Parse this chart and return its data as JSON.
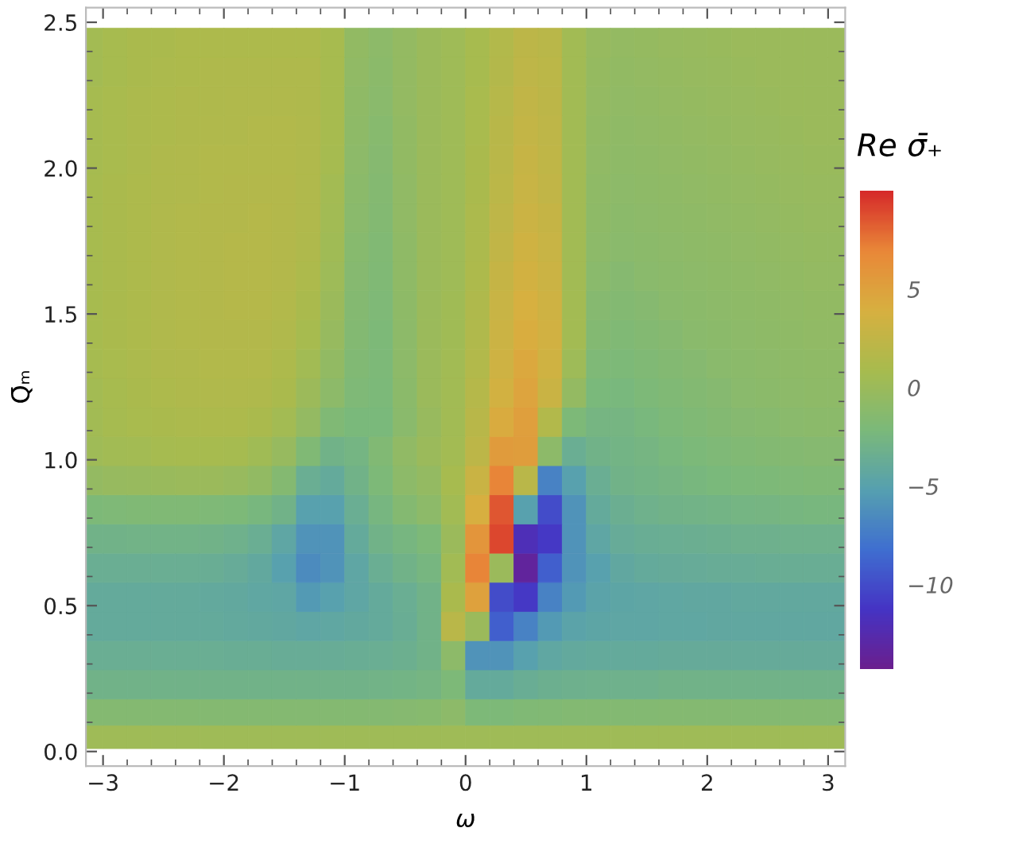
{
  "chart_data": {
    "type": "heatmap",
    "xlabel": "ω",
    "ylabel": "Q̄ₘ",
    "clabel": "Re σ̄₊",
    "xlim": [
      -3.1416,
      3.1416
    ],
    "ylim": [
      -0.05,
      2.55
    ],
    "xticks": [
      {
        "value": -3,
        "label": "−3"
      },
      {
        "value": -2,
        "label": "−2"
      },
      {
        "value": -1,
        "label": "−1"
      },
      0,
      1,
      2,
      3
    ],
    "yticks": [
      {
        "value": 0,
        "label": "0.0"
      },
      0.5,
      {
        "value": 1,
        "label": "1.0"
      },
      1.5,
      {
        "value": 2,
        "label": "2.0"
      },
      2.5
    ],
    "clim": [
      -14.3,
      10
    ],
    "cticks": [
      {
        "value": -10,
        "label": "−10"
      },
      {
        "value": -5,
        "label": "−5"
      },
      0,
      5
    ],
    "colors": [
      "#6b1f8e",
      "#4534c4",
      "#3f6fd0",
      "#56a0b0",
      "#7bb97a",
      "#a8bb4e",
      "#d7b040",
      "#e98838",
      "#d62a2a"
    ],
    "x": [
      -3.1,
      -2.9,
      -2.7,
      -2.5,
      -2.3,
      -2.1,
      -1.9,
      -1.7,
      -1.5,
      -1.3,
      -1.1,
      -0.9,
      -0.7,
      -0.5,
      -0.3,
      -0.1,
      0.1,
      0.3,
      0.5,
      0.7,
      0.9,
      1.1,
      1.3,
      1.5,
      1.7,
      1.9,
      2.1,
      2.3,
      2.5,
      2.7,
      2.9,
      3.1
    ],
    "y": [
      2.43,
      2.33,
      2.23,
      2.13,
      2.03,
      1.93,
      1.83,
      1.73,
      1.63,
      1.53,
      1.43,
      1.33,
      1.23,
      1.13,
      1.03,
      0.93,
      0.83,
      0.73,
      0.63,
      0.53,
      0.43,
      0.33,
      0.23,
      0.13,
      0.05
    ],
    "cells": [
      [
        0.6,
        0.8,
        1,
        1,
        1.2,
        1.2,
        1.2,
        1.2,
        1.2,
        1.2,
        0.8,
        -0.6,
        -1,
        -0.5,
        0,
        0.3,
        0.8,
        1.5,
        2.2,
        2,
        0.5,
        -0.3,
        -0.5,
        -0.4,
        -0.3,
        -0.2,
        -0.1,
        0,
        0,
        0,
        0,
        0
      ],
      [
        0.6,
        0.8,
        1,
        1.1,
        1.2,
        1.3,
        1.3,
        1.3,
        1.3,
        1.3,
        0.8,
        -0.7,
        -1.1,
        -0.5,
        0,
        0.3,
        0.8,
        1.6,
        2.3,
        2.1,
        0.5,
        -0.4,
        -0.6,
        -0.5,
        -0.4,
        -0.3,
        -0.2,
        -0.1,
        0,
        0,
        0,
        0
      ],
      [
        0.7,
        0.9,
        1.1,
        1.2,
        1.3,
        1.3,
        1.4,
        1.4,
        1.4,
        1.3,
        0.8,
        -0.8,
        -1.2,
        -0.5,
        0,
        0.3,
        0.9,
        1.8,
        2.5,
        2.2,
        0.5,
        -0.5,
        -0.7,
        -0.6,
        -0.5,
        -0.4,
        -0.3,
        -0.2,
        -0.1,
        0,
        0,
        0
      ],
      [
        0.7,
        0.9,
        1.1,
        1.2,
        1.3,
        1.4,
        1.4,
        1.5,
        1.5,
        1.4,
        0.8,
        -0.9,
        -1.3,
        -0.6,
        0,
        0.3,
        0.9,
        1.9,
        2.6,
        2.3,
        0.5,
        -0.6,
        -0.8,
        -0.7,
        -0.6,
        -0.5,
        -0.4,
        -0.3,
        -0.2,
        -0.1,
        0,
        0
      ],
      [
        0.7,
        0.9,
        1.1,
        1.3,
        1.4,
        1.5,
        1.5,
        1.5,
        1.5,
        1.4,
        0.7,
        -1,
        -1.4,
        -0.6,
        0,
        0.3,
        1,
        2,
        2.8,
        2.4,
        0.5,
        -0.7,
        -0.9,
        -0.8,
        -0.7,
        -0.6,
        -0.5,
        -0.4,
        -0.3,
        -0.2,
        -0.1,
        -0.1
      ],
      [
        0.8,
        1,
        1.2,
        1.3,
        1.4,
        1.5,
        1.6,
        1.6,
        1.6,
        1.4,
        0.6,
        -1.1,
        -1.5,
        -0.7,
        0,
        0.3,
        1,
        2.1,
        2.9,
        2.5,
        0.5,
        -0.8,
        -1,
        -0.9,
        -0.8,
        -0.7,
        -0.6,
        -0.5,
        -0.4,
        -0.3,
        -0.2,
        -0.2
      ],
      [
        0.8,
        1,
        1.2,
        1.4,
        1.5,
        1.6,
        1.6,
        1.7,
        1.6,
        1.4,
        0.5,
        -1.2,
        -1.6,
        -0.7,
        0,
        0.3,
        1.1,
        2.3,
        3.1,
        2.7,
        0.5,
        -0.9,
        -1.1,
        -1,
        -0.9,
        -0.8,
        -0.7,
        -0.6,
        -0.5,
        -0.4,
        -0.3,
        -0.3
      ],
      [
        0.8,
        1,
        1.2,
        1.4,
        1.5,
        1.6,
        1.7,
        1.7,
        1.6,
        1.3,
        0.4,
        -1.3,
        -1.7,
        -0.8,
        0,
        0.3,
        1.1,
        2.5,
        3.4,
        2.9,
        0.5,
        -1,
        -1.2,
        -1.1,
        -1,
        -0.9,
        -0.8,
        -0.7,
        -0.6,
        -0.5,
        -0.4,
        -0.4
      ],
      [
        0.8,
        1,
        1.2,
        1.4,
        1.5,
        1.6,
        1.7,
        1.7,
        1.6,
        1.2,
        0.2,
        -1.4,
        -1.8,
        -0.8,
        0,
        0.3,
        1.2,
        2.7,
        3.6,
        3.1,
        0.5,
        -1.2,
        -1.4,
        -1.2,
        -1.1,
        -1,
        -0.9,
        -0.8,
        -0.7,
        -0.6,
        -0.5,
        -0.5
      ],
      [
        0.8,
        1,
        1.2,
        1.4,
        1.5,
        1.6,
        1.7,
        1.7,
        1.5,
        1,
        0,
        -1.5,
        -1.9,
        -0.9,
        0,
        0.4,
        1.3,
        2.9,
        3.9,
        3.3,
        0.6,
        -1.4,
        -1.6,
        -1.4,
        -1.2,
        -1.1,
        -1,
        -0.9,
        -0.8,
        -0.7,
        -0.6,
        -0.6
      ],
      [
        0.8,
        1,
        1.2,
        1.4,
        1.5,
        1.6,
        1.6,
        1.6,
        1.4,
        0.8,
        -0.3,
        -1.6,
        -2,
        -1,
        0,
        0.4,
        1.4,
        3.1,
        4.2,
        3.5,
        0.6,
        -1.6,
        -1.8,
        -1.6,
        -1.4,
        -1.2,
        -1.1,
        -1,
        -0.9,
        -0.8,
        -0.7,
        -0.7
      ],
      [
        0.7,
        0.9,
        1.1,
        1.3,
        1.4,
        1.5,
        1.5,
        1.5,
        1.2,
        0.5,
        -0.6,
        -1.7,
        -2,
        -1,
        0,
        0.5,
        1.5,
        3.3,
        4.5,
        3.4,
        0.2,
        -1.9,
        -2,
        -1.8,
        -1.6,
        -1.4,
        -1.2,
        -1.1,
        -1,
        -0.9,
        -0.8,
        -0.8
      ],
      [
        0.6,
        0.8,
        1,
        1.2,
        1.3,
        1.4,
        1.4,
        1.3,
        1,
        0.1,
        -1,
        -1.9,
        -2.1,
        -1.1,
        0,
        0.5,
        1.7,
        3.6,
        4.8,
        3,
        -0.5,
        -2.2,
        -2.3,
        -2,
        -1.8,
        -1.6,
        -1.4,
        -1.2,
        -1.1,
        -1,
        -0.9,
        -0.9
      ],
      [
        0.5,
        0.7,
        0.9,
        1,
        1.1,
        1.2,
        1.2,
        1,
        0.6,
        -0.5,
        -1.8,
        -2.2,
        -2.2,
        -1.2,
        -0.2,
        0.5,
        1.9,
        4.3,
        5.2,
        1.5,
        -2,
        -2.6,
        -2.6,
        -2.3,
        -2,
        -1.8,
        -1.6,
        -1.4,
        -1.3,
        -1.2,
        -1.1,
        -1.1
      ],
      [
        0.3,
        0.5,
        0.6,
        0.7,
        0.8,
        0.8,
        0.7,
        0.4,
        -0.3,
        -1.8,
        -3,
        -2.7,
        -1.7,
        -0.7,
        0,
        0.6,
        2.2,
        5.5,
        5.3,
        -1,
        -3.5,
        -3,
        -2.8,
        -2.6,
        -2.3,
        -2.1,
        -1.9,
        -1.7,
        -1.6,
        -1.5,
        -1.4,
        -1.4
      ],
      [
        -0.5,
        -0.3,
        -0.2,
        -0.1,
        0,
        0,
        -0.2,
        -0.6,
        -1.5,
        -3.5,
        -4,
        -3,
        -2,
        -1,
        -0.5,
        0.8,
        3,
        7,
        2,
        -7,
        -5,
        -3.5,
        -3,
        -2.8,
        -2.6,
        -2.4,
        -2.2,
        -2.1,
        -2,
        -1.9,
        -1.8,
        -1.8
      ],
      [
        -2,
        -1.9,
        -1.8,
        -1.8,
        -1.8,
        -1.9,
        -2,
        -2.4,
        -3,
        -5,
        -5,
        -3.5,
        -2.5,
        -1.5,
        -1,
        0.5,
        4,
        8.5,
        -5,
        -10,
        -6,
        -4,
        -3.4,
        -3.1,
        -3,
        -2.9,
        -2.8,
        -2.7,
        -2.6,
        -2.5,
        -2.4,
        -2.4
      ],
      [
        -3,
        -3,
        -2.9,
        -2.9,
        -2.9,
        -3,
        -3.1,
        -3.5,
        -4.5,
        -6,
        -6,
        -4,
        -3,
        -2.5,
        -2,
        0,
        6,
        9,
        -12,
        -11,
        -6,
        -4.5,
        -3.8,
        -3.6,
        -3.5,
        -3.4,
        -3.3,
        -3.2,
        -3.2,
        -3.1,
        -3.1,
        -3.1
      ],
      [
        -3.5,
        -3.5,
        -3.5,
        -3.5,
        -3.5,
        -3.6,
        -3.8,
        -4.2,
        -5,
        -6.5,
        -6,
        -4.5,
        -3.5,
        -3,
        -2.5,
        0.5,
        7,
        0,
        -13.5,
        -9,
        -6,
        -5,
        -4.3,
        -4,
        -3.9,
        -3.8,
        -3.7,
        -3.7,
        -3.6,
        -3.6,
        -3.6,
        -3.6
      ],
      [
        -4,
        -4,
        -4,
        -4,
        -4,
        -4.1,
        -4.2,
        -4.4,
        -4.5,
        -5.5,
        -5,
        -4.5,
        -4,
        -3.5,
        -3,
        1,
        5,
        -10,
        -11,
        -7,
        -5.5,
        -4.8,
        -4.6,
        -4.5,
        -4.4,
        -4.3,
        -4.3,
        -4.2,
        -4.2,
        -4.2,
        -4.2,
        -4.2
      ],
      [
        -4,
        -4,
        -4,
        -4,
        -4,
        -4,
        -4.1,
        -4.2,
        -4.3,
        -4.5,
        -4.4,
        -4.2,
        -4,
        -3.6,
        -3,
        2,
        0,
        -9,
        -7,
        -5.5,
        -4.8,
        -4.6,
        -4.5,
        -4.5,
        -4.4,
        -4.4,
        -4.3,
        -4.3,
        -4.3,
        -4.3,
        -4.3,
        -4.3
      ],
      [
        -3.5,
        -3.5,
        -3.5,
        -3.5,
        -3.5,
        -3.5,
        -3.6,
        -3.6,
        -3.7,
        -3.7,
        -3.7,
        -3.6,
        -3.5,
        -3.3,
        -3,
        -1,
        -6,
        -6,
        -5,
        -4.4,
        -4.1,
        -4,
        -4,
        -4,
        -3.9,
        -3.9,
        -3.9,
        -3.9,
        -3.9,
        -3.9,
        -3.9,
        -3.9
      ],
      [
        -3,
        -3,
        -3,
        -3,
        -3,
        -3,
        -3,
        -3,
        -3,
        -3,
        -3,
        -3,
        -2.9,
        -2.8,
        -2.6,
        -2,
        -4,
        -4,
        -3.6,
        -3.3,
        -3.2,
        -3.1,
        -3.1,
        -3.1,
        -3,
        -3,
        -3,
        -3,
        -3,
        -3,
        -3,
        -3
      ],
      [
        -1.5,
        -1.5,
        -1.5,
        -1.5,
        -1.5,
        -1.5,
        -1.5,
        -1.5,
        -1.5,
        -1.5,
        -1.5,
        -1.5,
        -1.5,
        -1.4,
        -1.3,
        -1,
        -2,
        -2,
        -1.8,
        -1.7,
        -1.6,
        -1.6,
        -1.6,
        -1.6,
        -1.5,
        -1.5,
        -1.5,
        -1.5,
        -1.5,
        -1.5,
        -1.5,
        -1.5
      ],
      [
        0.3,
        0.3,
        0.3,
        0.3,
        0.3,
        0.3,
        0.3,
        0.3,
        0.3,
        0.3,
        0.3,
        0.3,
        0.3,
        0.3,
        0.3,
        0.3,
        0.3,
        0.3,
        0.3,
        0.3,
        0.3,
        0.3,
        0.3,
        0.3,
        0.3,
        0.3,
        0.3,
        0.3,
        0.3,
        0.3,
        0.3,
        0.3
      ]
    ]
  }
}
